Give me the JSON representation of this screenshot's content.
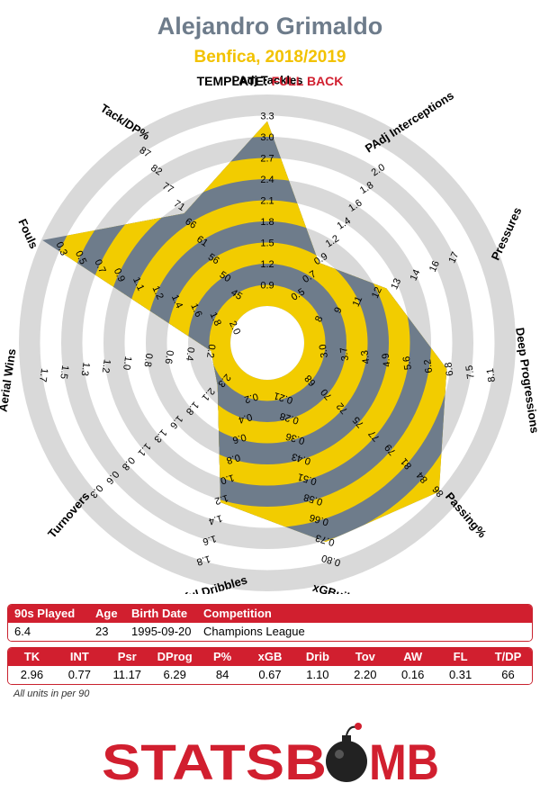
{
  "header": {
    "player": "Alejandro Grimaldo",
    "team_season": "Benfica, 2018/2019",
    "template_label": "TEMPLATE:",
    "template_value": "FULL BACK"
  },
  "chart_data": {
    "type": "radar",
    "grid": true,
    "colors": {
      "ring_grey": "#d9d9d9",
      "band_yellow": "#f2cc00",
      "band_slate": "#6e7c8b",
      "text": "#000000"
    },
    "axes": [
      {
        "label": "PAdj Tackles",
        "ticks": [
          "0.9",
          "1.2",
          "1.5",
          "1.8",
          "2.1",
          "2.4",
          "2.7",
          "3.0",
          "3.3"
        ],
        "value": 2.96,
        "range": [
          0.6,
          3.3
        ]
      },
      {
        "label": "PAdj Interceptions",
        "ticks": [
          "0.5",
          "0.7",
          "0.9",
          "1.2",
          "1.4",
          "1.6",
          "1.8",
          "2.0"
        ],
        "value": 0.77,
        "range": [
          0.3,
          2.0
        ]
      },
      {
        "label": "Pressures",
        "ticks": [
          "8",
          "9",
          "11",
          "12",
          "13",
          "14",
          "16",
          "17"
        ],
        "value": 11.17,
        "range": [
          6.5,
          17
        ]
      },
      {
        "label": "Deep Progressions",
        "ticks": [
          "3.0",
          "3.7",
          "4.3",
          "4.9",
          "5.6",
          "6.2",
          "6.8",
          "7.5",
          "8.1"
        ],
        "value": 6.29,
        "range": [
          2.4,
          8.1
        ]
      },
      {
        "label": "Passing%",
        "ticks": [
          "68",
          "70",
          "72",
          "75",
          "77",
          "79",
          "81",
          "84",
          "86"
        ],
        "value": 84,
        "range": [
          66,
          86
        ]
      },
      {
        "label": "xGBuildup",
        "ticks": [
          "0.21",
          "0.28",
          "0.36",
          "0.43",
          "0.51",
          "0.58",
          "0.66",
          "0.73",
          "0.80"
        ],
        "value": 0.67,
        "range": [
          0.13,
          0.8
        ]
      },
      {
        "label": "Successful Dribbles",
        "ticks": [
          "0.2",
          "0.4",
          "0.6",
          "0.8",
          "1.0",
          "1.2",
          "1.4",
          "1.6",
          "1.8"
        ],
        "value": 1.1,
        "range": [
          0.0,
          1.8
        ]
      },
      {
        "label": "Turnovers",
        "ticks": [
          "2.3",
          "2.1",
          "1.8",
          "1.6",
          "1.3",
          "1.1",
          "0.8",
          "0.6",
          "0.3"
        ],
        "value": 2.2,
        "range": [
          2.5,
          0.3
        ]
      },
      {
        "label": "Aerial Wins",
        "ticks": [
          "0.2",
          "0.4",
          "0.6",
          "0.8",
          "1.0",
          "1.2",
          "1.3",
          "1.5",
          "1.7"
        ],
        "value": 0.16,
        "range": [
          0.0,
          1.7
        ]
      },
      {
        "label": "Fouls",
        "ticks": [
          "2.0",
          "1.8",
          "1.6",
          "1.4",
          "1.2",
          "1.1",
          "0.9",
          "0.7",
          "0.5",
          "0.3"
        ],
        "value": 0.31,
        "range": [
          2.2,
          0.3
        ],
        "tick_start": 0
      },
      {
        "label": "Tack/DP%",
        "ticks": [
          "45",
          "50",
          "56",
          "61",
          "66",
          "71",
          "77",
          "82",
          "87"
        ],
        "value": 66,
        "range": [
          40,
          87
        ]
      }
    ]
  },
  "info_table": {
    "headers": [
      "90s Played",
      "Age",
      "Birth Date",
      "Competition"
    ],
    "values": [
      "6.4",
      "23",
      "1995-09-20",
      "Champions League"
    ]
  },
  "stats_table": {
    "headers": [
      "TK",
      "INT",
      "Psr",
      "DProg",
      "P%",
      "xGB",
      "Drib",
      "Tov",
      "AW",
      "FL",
      "T/DP"
    ],
    "values": [
      "2.96",
      "0.77",
      "11.17",
      "6.29",
      "84",
      "0.67",
      "1.10",
      "2.20",
      "0.16",
      "0.31",
      "66"
    ]
  },
  "footnote": "All units in per 90",
  "logo": {
    "text_left": "STATSB",
    "text_right": "MB",
    "color": "#d11f2f",
    "bomb_color": "#222222"
  }
}
